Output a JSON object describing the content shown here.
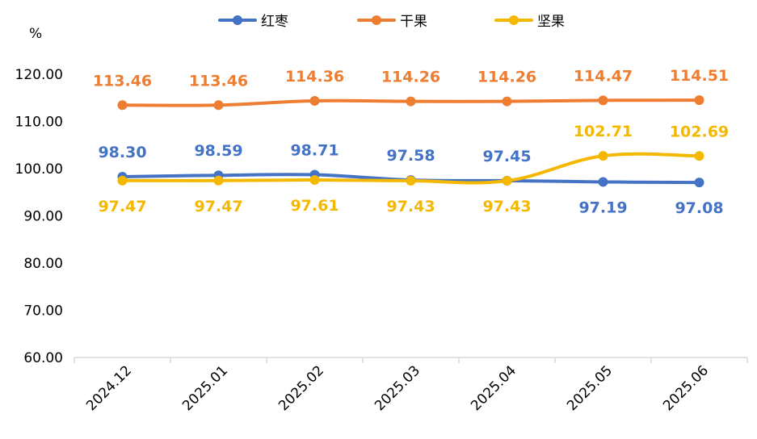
{
  "chart_data": {
    "type": "line",
    "y_unit": "%",
    "categories": [
      "2024.12",
      "2025.01",
      "2025.02",
      "2025.03",
      "2025.04",
      "2025.05",
      "2025.06"
    ],
    "ylim": [
      60,
      120
    ],
    "yticks": [
      "60.00",
      "70.00",
      "80.00",
      "90.00",
      "100.00",
      "110.00",
      "120.00"
    ],
    "legend_position": "top",
    "grid": false,
    "series": [
      {
        "name": "红枣",
        "color": "#4472c4",
        "values": [
          98.3,
          98.59,
          98.71,
          97.58,
          97.45,
          97.19,
          97.08
        ],
        "labels": [
          "98.30",
          "98.59",
          "98.71",
          "97.58",
          "97.45",
          "97.19",
          "97.08"
        ],
        "label_pos": [
          "above",
          "above",
          "above",
          "above",
          "above",
          "below",
          "below"
        ]
      },
      {
        "name": "干果",
        "color": "#ed7d31",
        "values": [
          113.46,
          113.46,
          114.36,
          114.26,
          114.26,
          114.47,
          114.51
        ],
        "labels": [
          "113.46",
          "113.46",
          "114.36",
          "114.26",
          "114.26",
          "114.47",
          "114.51"
        ],
        "label_pos": [
          "above",
          "above",
          "above",
          "above",
          "above",
          "above",
          "above"
        ]
      },
      {
        "name": "坚果",
        "color": "#f5b800",
        "values": [
          97.47,
          97.47,
          97.61,
          97.43,
          97.43,
          102.71,
          102.69
        ],
        "labels": [
          "97.47",
          "97.47",
          "97.61",
          "97.43",
          "97.43",
          "102.71",
          "102.69"
        ],
        "label_pos": [
          "below",
          "below",
          "below",
          "below",
          "below",
          "above",
          "above"
        ]
      }
    ]
  }
}
